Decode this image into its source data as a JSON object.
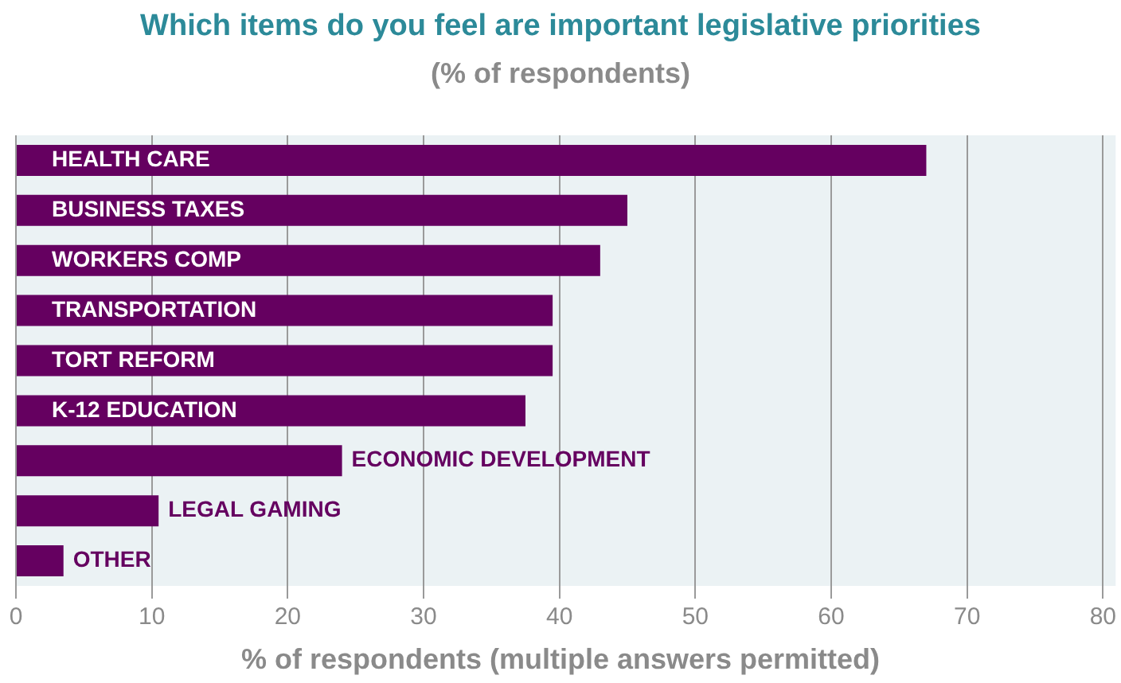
{
  "chart_data": {
    "type": "bar",
    "orientation": "horizontal",
    "title": "Which items do you feel are important legislative priorities",
    "subtitle": "(% of respondents)",
    "xlabel": "% of respondents (multiple answers permitted)",
    "categories": [
      "HEALTH CARE",
      "BUSINESS TAXES",
      "WORKERS COMP",
      "TRANSPORTATION",
      "TORT REFORM",
      "K-12 EDUCATION",
      "ECONOMIC DEVELOPMENT",
      "LEGAL GAMING",
      "OTHER"
    ],
    "values": [
      67,
      45,
      43,
      39.5,
      39.5,
      37.5,
      24,
      10.5,
      3.5
    ],
    "color": "#650060",
    "xlim": [
      0,
      80
    ],
    "xticks": [
      0,
      10,
      20,
      30,
      40,
      50,
      60,
      70,
      80
    ],
    "grid": "x",
    "legend": false
  }
}
